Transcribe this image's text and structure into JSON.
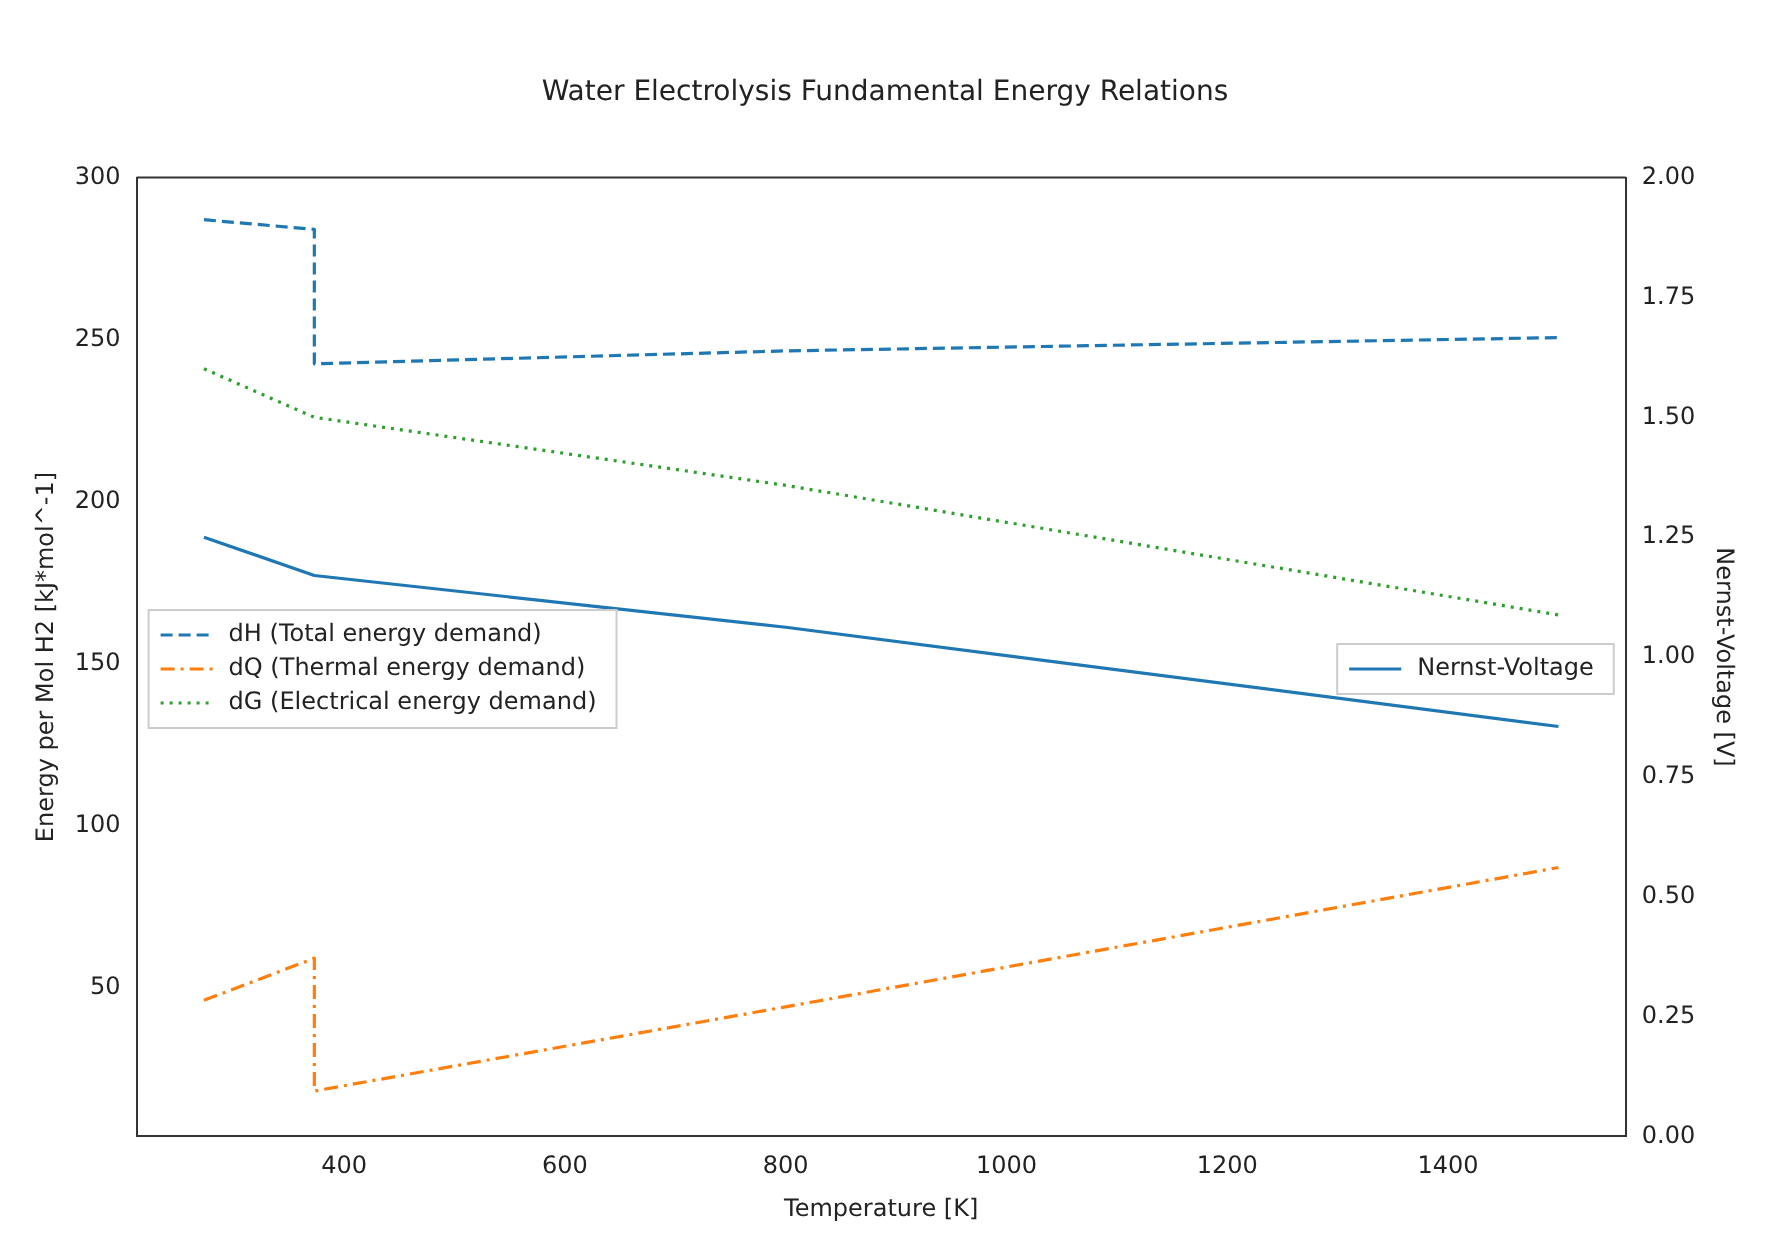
{
  "chart_data": {
    "type": "line",
    "title": "Water Electrolysis Fundamental Energy Relations",
    "xlabel": "Temperature [K]",
    "ylabel": "Energy per Mol H2 [kJ*mol^-1]",
    "y2label": "Nernst-Voltage [V]",
    "xlim": [
      212,
      1561
    ],
    "xticks": [
      400,
      600,
      800,
      1000,
      1200,
      1400
    ],
    "ylim": [
      4,
      300
    ],
    "yticks": [
      50,
      100,
      150,
      200,
      250,
      300
    ],
    "y2lim": [
      0,
      2
    ],
    "y2ticks": [
      {
        "value": 0,
        "label": "0.00"
      },
      {
        "value": 0.25,
        "label": "0.25"
      },
      {
        "value": 0.5,
        "label": "0.50"
      },
      {
        "value": 0.75,
        "label": "0.75"
      },
      {
        "value": 1,
        "label": "1.00"
      },
      {
        "value": 1.25,
        "label": "1.25"
      },
      {
        "value": 1.5,
        "label": "1.50"
      },
      {
        "value": 1.75,
        "label": "1.75"
      },
      {
        "value": 2,
        "label": "2.00"
      }
    ],
    "grid": false,
    "legend": "left",
    "marker": "none",
    "series": [
      {
        "name": "dH (Total energy demand)",
        "color": "#1f77b4",
        "line_style": "dashed",
        "x": [
          273,
          373,
          373,
          800,
          1500
        ],
        "values": [
          287,
          284,
          242.5,
          246.5,
          250.6
        ]
      },
      {
        "name": "dQ (Thermal energy demand)",
        "color": "#ff7f0e",
        "line_style": "dashdot",
        "x": [
          273,
          373,
          373,
          800,
          1500
        ],
        "values": [
          46,
          59,
          18,
          44,
          87
        ]
      },
      {
        "name": "dG (Electrical energy demand)",
        "color": "#2ca02c",
        "line_style": "dotted",
        "x": [
          273,
          373,
          800,
          1500
        ],
        "values": [
          241,
          226,
          205,
          165
        ]
      },
      {
        "name": "Nernst-Voltage",
        "color": "#1f77b4",
        "line_style": "solid",
        "axis": "y2",
        "x": [
          273,
          373,
          800,
          1500
        ],
        "values": [
          1.25,
          1.17,
          1.062,
          0.855
        ]
      }
    ]
  }
}
